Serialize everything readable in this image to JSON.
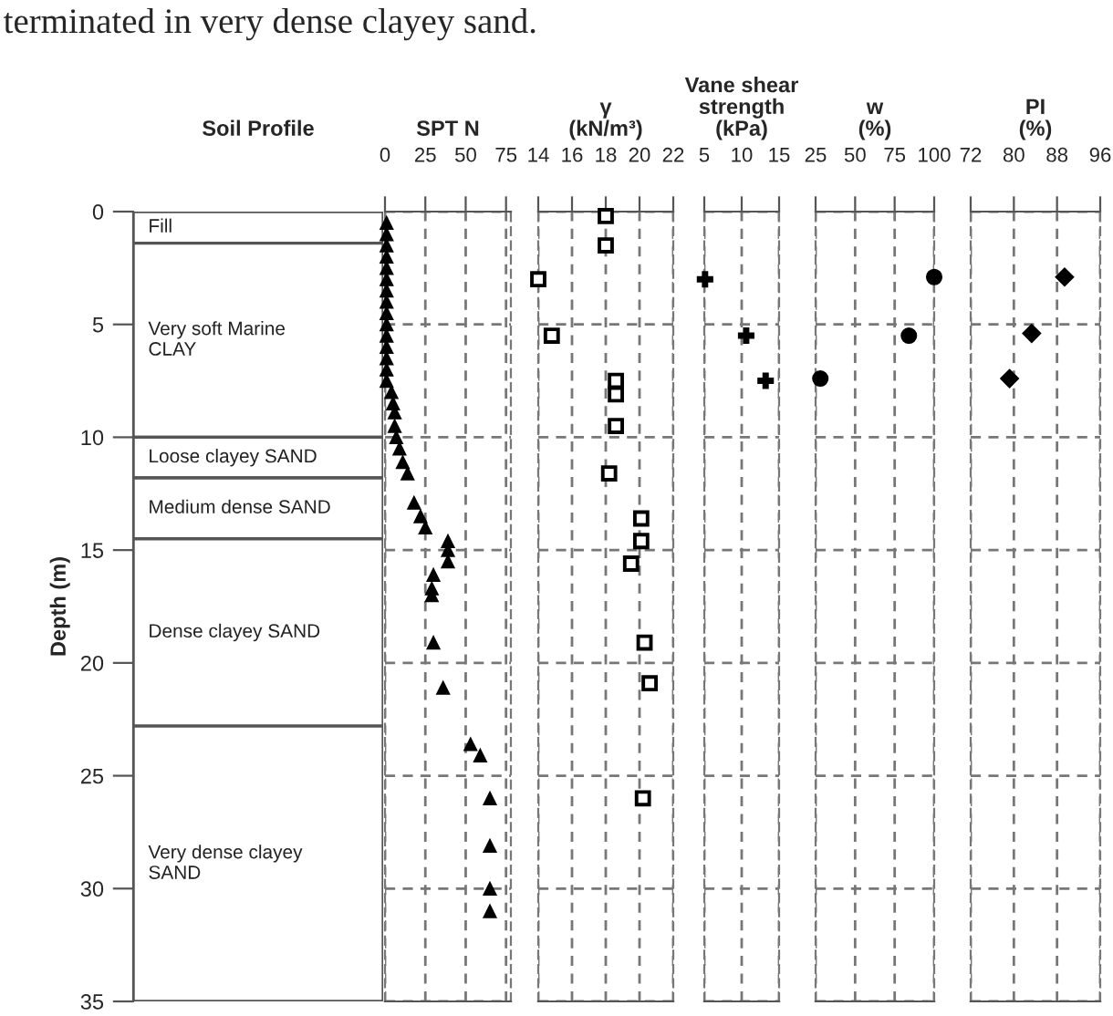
{
  "chart_data": [
    {
      "type": "bar",
      "stacked": true,
      "title": "Soil Profile",
      "ylabel": "Depth (m)",
      "categories": [
        null
      ],
      "ylim": [
        35,
        0
      ],
      "yticks": [
        0,
        5,
        10,
        15,
        20,
        25,
        30,
        35
      ],
      "tick_labels": "y",
      "annotations": [
        "terminated in very dense clayey sand."
      ],
      "series": [
        {
          "name": "Fill",
          "color": "#ffffff",
          "values": [
            1.4
          ]
        },
        {
          "name": "Very soft Marine\nCLAY",
          "color": "#ffffff",
          "values": [
            8.6
          ]
        },
        {
          "name": "Loose clayey SAND",
          "color": "#ffffff",
          "values": [
            1.8
          ]
        },
        {
          "name": "Medium dense SAND",
          "color": "#ffffff",
          "values": [
            2.7
          ]
        },
        {
          "name": "Dense clayey SAND",
          "color": "#ffffff",
          "values": [
            8.3
          ]
        },
        {
          "name": "Very dense clayey\nSAND",
          "color": "#ffffff",
          "values": [
            12.2
          ]
        }
      ]
    },
    {
      "type": "scatter",
      "title": "SPT N",
      "xlim": [
        0,
        78
      ],
      "xticks": [
        0,
        25,
        50,
        75
      ],
      "ylim": [
        35,
        0
      ],
      "yticks": [
        0,
        5,
        10,
        15,
        20,
        25,
        30,
        35
      ],
      "tick_labels": "x",
      "grid": true,
      "series": [
        {
          "color": "#000000",
          "marker": "triangle",
          "x": [
            1,
            1,
            1,
            1,
            1,
            1,
            1,
            1,
            1,
            1,
            1,
            1,
            1,
            1,
            1,
            4,
            5,
            6,
            6,
            7,
            9,
            11,
            14,
            18,
            22,
            25,
            39,
            39,
            39,
            30,
            29,
            29,
            30,
            36,
            53,
            59,
            65,
            65,
            65,
            65
          ],
          "values": [
            0.5,
            1,
            1.5,
            2,
            2.5,
            3,
            3.5,
            4,
            4.5,
            5,
            5.5,
            6,
            6.5,
            7,
            7.5,
            8,
            8.5,
            8.9,
            9.5,
            10,
            10.5,
            11.1,
            11.6,
            12.9,
            13.5,
            14,
            14.6,
            15,
            15.5,
            16.1,
            16.7,
            17,
            19.1,
            21.1,
            23.6,
            24.1,
            26,
            28.1,
            30,
            31
          ]
        }
      ]
    },
    {
      "type": "scatter",
      "title": "γ\n(kN/m³)",
      "xlim": [
        14,
        22
      ],
      "xticks": [
        14,
        16,
        18,
        20,
        22
      ],
      "ylim": [
        35,
        0
      ],
      "yticks": [
        0,
        5,
        10,
        15,
        20,
        25,
        30,
        35
      ],
      "tick_labels": "x",
      "grid": true,
      "series": [
        {
          "color": "#000000",
          "marker": "square",
          "x": [
            18,
            18,
            14,
            14.8,
            18.6,
            18.6,
            18.6,
            18.2,
            20.1,
            20.1,
            19.5,
            20.3,
            20.6,
            20.2
          ],
          "values": [
            0.2,
            1.5,
            3,
            5.5,
            7.5,
            8.1,
            9.5,
            11.6,
            13.6,
            14.6,
            15.6,
            19.1,
            20.9,
            26
          ]
        }
      ]
    },
    {
      "type": "scatter",
      "title": "Vane shear\nstrength\n(kPa)",
      "xlim": [
        5,
        15
      ],
      "xticks": [
        5,
        10,
        15
      ],
      "ylim": [
        35,
        0
      ],
      "yticks": [
        0,
        5,
        10,
        15,
        20,
        25,
        30,
        35
      ],
      "tick_labels": "x",
      "grid": true,
      "series": [
        {
          "color": "#000000",
          "marker": "cross",
          "x": [
            5.1,
            10.6,
            13.2
          ],
          "values": [
            3,
            5.5,
            7.5
          ]
        }
      ]
    },
    {
      "type": "scatter",
      "title": "w\n(%)",
      "xlim": [
        25,
        100
      ],
      "xticks": [
        25,
        50,
        75,
        100
      ],
      "ylim": [
        35,
        0
      ],
      "yticks": [
        0,
        5,
        10,
        15,
        20,
        25,
        30,
        35
      ],
      "tick_labels": "x",
      "grid": true,
      "series": [
        {
          "color": "#000000",
          "marker": "circle",
          "x": [
            100,
            84,
            28
          ],
          "values": [
            2.9,
            5.5,
            7.4
          ]
        }
      ]
    },
    {
      "type": "scatter",
      "title": "PI\n(%)",
      "xlim": [
        72,
        96
      ],
      "xticks": [
        72,
        80,
        88,
        96
      ],
      "ylim": [
        35,
        0
      ],
      "yticks": [
        0,
        5,
        10,
        15,
        20,
        25,
        30,
        35
      ],
      "tick_labels": "x",
      "grid": true,
      "series": [
        {
          "color": "#000000",
          "marker": "diamond",
          "x": [
            89.4,
            83.3,
            79.2
          ],
          "values": [
            2.9,
            5.4,
            7.4
          ]
        }
      ]
    }
  ]
}
